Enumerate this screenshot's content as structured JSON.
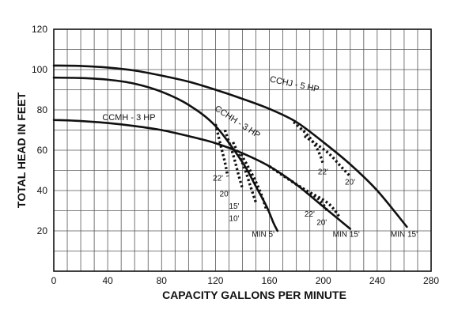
{
  "chart_data": {
    "type": "line",
    "xlabel": "CAPACITY GALLONS PER MINUTE",
    "ylabel": "TOTAL HEAD IN FEET",
    "xlim": [
      0,
      280
    ],
    "ylim": [
      0,
      120
    ],
    "x_ticks": [
      0,
      40,
      80,
      120,
      160,
      200,
      240,
      280
    ],
    "y_ticks": [
      20,
      40,
      60,
      80,
      100,
      120
    ],
    "grid": true,
    "series": [
      {
        "name": "CCHJ - 5 HP",
        "style": "solid",
        "x": [
          0,
          20,
          40,
          60,
          80,
          100,
          120,
          140,
          160,
          180,
          200,
          220,
          240,
          262
        ],
        "y": [
          102,
          101.8,
          101,
          99.5,
          97,
          94,
          90,
          85.5,
          80.5,
          74,
          64,
          53,
          40,
          22
        ]
      },
      {
        "name": "CCHH - 3 HP",
        "style": "solid",
        "x": [
          0,
          20,
          40,
          60,
          80,
          100,
          120,
          140,
          150,
          158,
          163,
          166
        ],
        "y": [
          96,
          95.8,
          95,
          93,
          89,
          82.5,
          72,
          54,
          42,
          32,
          24,
          20
        ]
      },
      {
        "name": "CCMH - 3 HP",
        "style": "solid",
        "x": [
          0,
          20,
          40,
          60,
          80,
          100,
          120,
          140,
          160,
          180,
          200,
          220
        ],
        "y": [
          75,
          74.5,
          73.5,
          72,
          70,
          67,
          63.5,
          58.5,
          52,
          43,
          32,
          21
        ]
      },
      {
        "name": "22'",
        "style": "dotted",
        "x": [
          120,
          124,
          127,
          129
        ],
        "y": [
          73,
          62,
          54,
          47
        ]
      },
      {
        "name": "20'",
        "style": "dotted",
        "x": [
          127,
          133,
          137,
          140
        ],
        "y": [
          70,
          58,
          48,
          41
        ]
      },
      {
        "name": "15'",
        "style": "dotted",
        "x": [
          133,
          141,
          146,
          150
        ],
        "y": [
          64,
          52,
          42,
          34
        ]
      },
      {
        "name": "10'",
        "style": "dotted",
        "x": [
          139,
          148,
          154,
          158
        ],
        "y": [
          58,
          47,
          38,
          30
        ]
      },
      {
        "name": "22'",
        "style": "dotted",
        "x": [
          178,
          189,
          196,
          200
        ],
        "y": [
          74,
          67,
          60,
          53
        ]
      },
      {
        "name": "20'",
        "style": "dotted",
        "x": [
          186,
          203,
          213,
          220
        ],
        "y": [
          67,
          59,
          52,
          47
        ]
      },
      {
        "name": "22'",
        "style": "dotted",
        "x": [
          160,
          180,
          196,
          203
        ],
        "y": [
          52,
          43,
          36,
          30
        ]
      },
      {
        "name": "20'",
        "style": "dotted",
        "x": [
          160,
          185,
          203,
          212
        ],
        "y": [
          52,
          41,
          34,
          27
        ]
      }
    ],
    "annotations": [
      {
        "text": "CCHJ - 5 HP",
        "x": 160,
        "y": 94,
        "rotate": 12
      },
      {
        "text": "CCHH - 3 HP",
        "x": 119,
        "y": 80,
        "rotate": 33
      },
      {
        "text": "CCMH - 3 HP",
        "x": 36,
        "y": 75,
        "rotate": 0
      },
      {
        "text": "22'",
        "x": 118,
        "y": 45,
        "rotate": 0
      },
      {
        "text": "20'",
        "x": 123,
        "y": 37,
        "rotate": 0
      },
      {
        "text": "15'",
        "x": 130,
        "y": 31,
        "rotate": 0
      },
      {
        "text": "10'",
        "x": 130,
        "y": 25,
        "rotate": 0
      },
      {
        "text": "22'",
        "x": 196,
        "y": 48,
        "rotate": 0
      },
      {
        "text": "20'",
        "x": 216,
        "y": 43,
        "rotate": 0
      },
      {
        "text": "22'",
        "x": 186,
        "y": 27,
        "rotate": 0
      },
      {
        "text": "20'",
        "x": 195,
        "y": 23,
        "rotate": 0
      },
      {
        "text": "MIN 5'",
        "x": 147,
        "y": 17,
        "rotate": 0
      },
      {
        "text": "MIN 15'",
        "x": 207,
        "y": 17,
        "rotate": 0
      },
      {
        "text": "MIN 15'",
        "x": 250,
        "y": 17,
        "rotate": 0
      }
    ]
  }
}
